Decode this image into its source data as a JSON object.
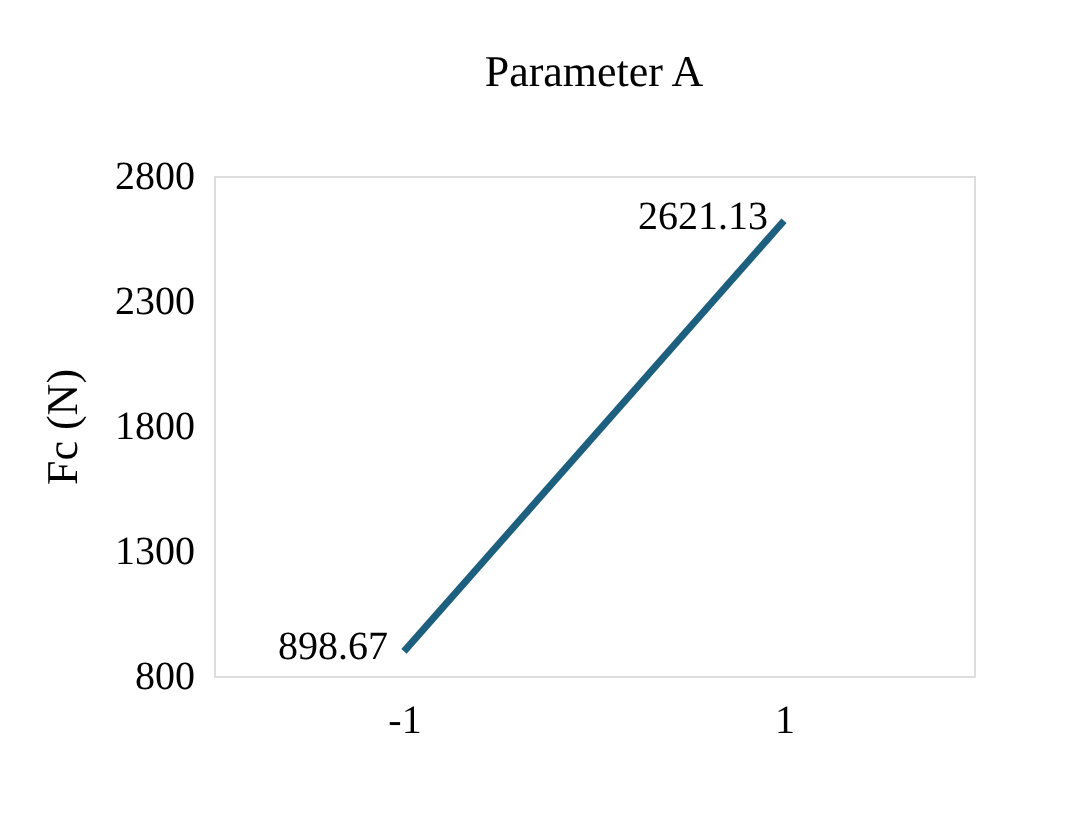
{
  "chart_data": {
    "type": "line",
    "title": "Parameter A",
    "ylabel": "Fc (N)",
    "categories": [
      "-1",
      "1"
    ],
    "series": [
      {
        "color": "#1c5f7e",
        "values": [
          898.67,
          2621.13
        ]
      }
    ],
    "ylim": [
      800,
      2800
    ],
    "yticks": [
      800,
      1300,
      1800,
      2300,
      2800
    ],
    "grid": false,
    "legend": false,
    "data_labels": true,
    "marker": "none",
    "line_style": "solid"
  }
}
